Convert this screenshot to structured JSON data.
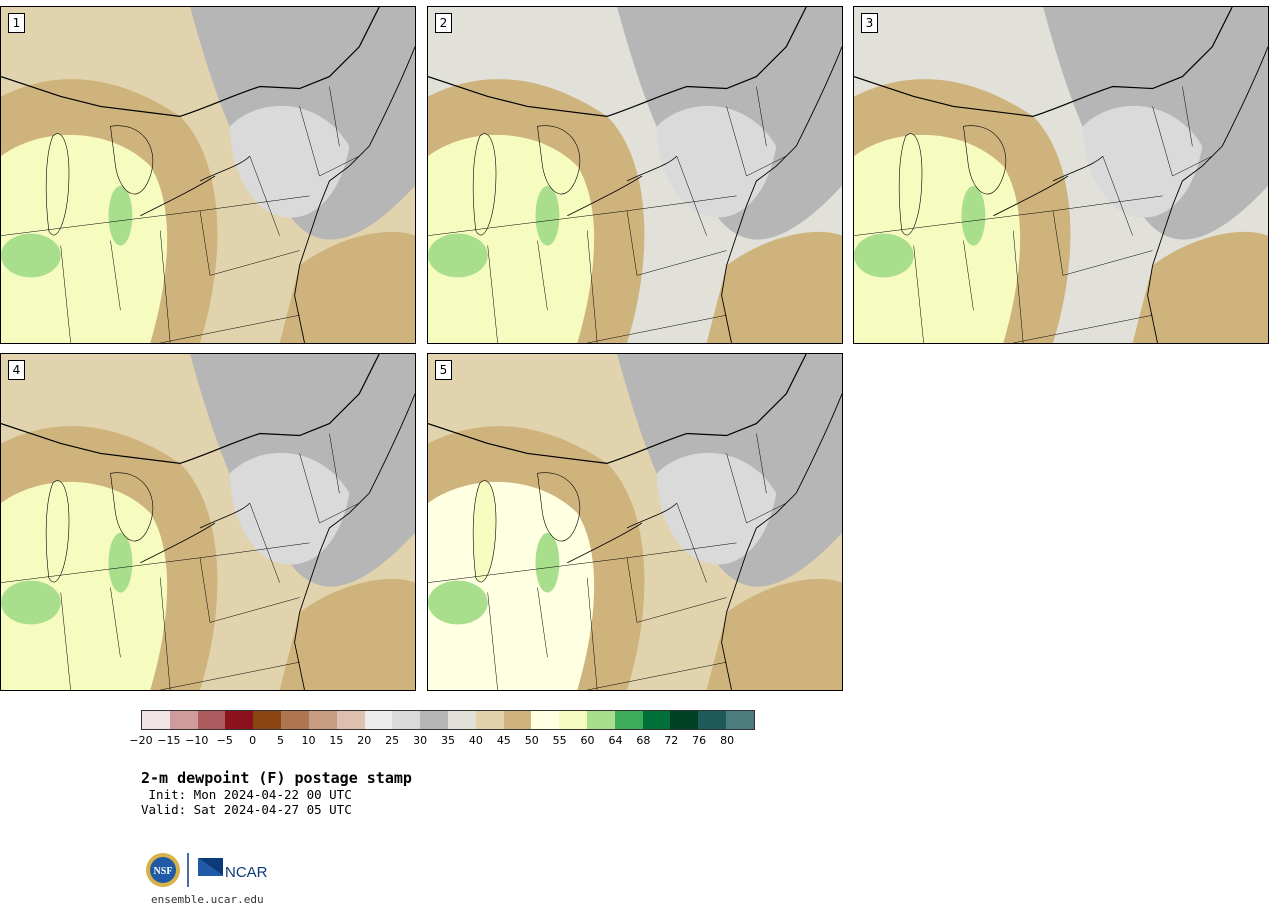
{
  "panels": [
    {
      "label": "1"
    },
    {
      "label": "2"
    },
    {
      "label": "3"
    },
    {
      "label": "4"
    },
    {
      "label": "5"
    }
  ],
  "colorbar": {
    "colors": [
      "#f0e4e4",
      "#d09b9b",
      "#ae5a5e",
      "#8b121c",
      "#8b4513",
      "#ad7650",
      "#c79e83",
      "#dfc0b0",
      "#ececec",
      "#dadada",
      "#b6b6b6",
      "#e1e1d9",
      "#e1d2ab",
      "#cfb37c",
      "#ffffe1",
      "#f6fbbf",
      "#a8de8c",
      "#3eab5a",
      "#007038",
      "#004024",
      "#1e5a5a",
      "#4d7c7c"
    ],
    "ticks": [
      "−20",
      "−15",
      "−10",
      "−5",
      "0",
      "5",
      "10",
      "15",
      "20",
      "25",
      "30",
      "35",
      "40",
      "45",
      "50",
      "55",
      "60",
      "64",
      "68",
      "72",
      "76",
      "80"
    ]
  },
  "title": "2-m dewpoint (F) postage stamp",
  "init": " Init: Mon 2024-04-22 00 UTC",
  "valid": "Valid: Sat 2024-04-27 05 UTC",
  "logos": {
    "nsf": "NSF",
    "ncar": "NCAR"
  },
  "site": "ensemble.ucar.edu"
}
